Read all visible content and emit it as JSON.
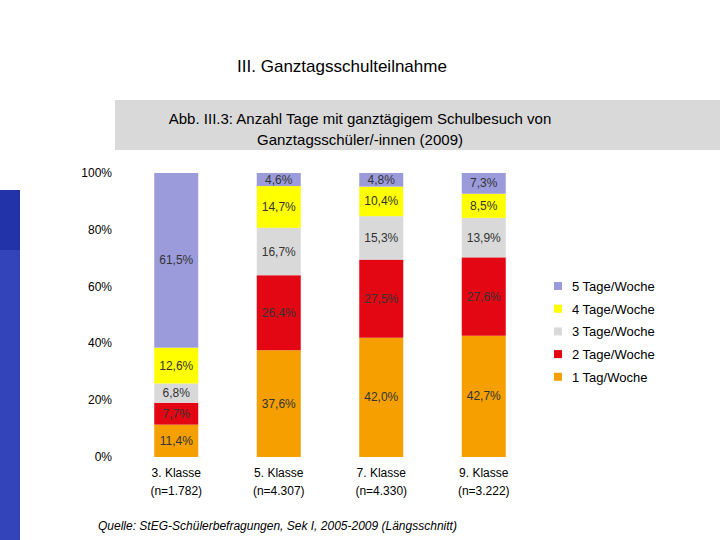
{
  "chart_data": {
    "type": "bar",
    "stacked": true,
    "data_labels": true,
    "heading": "III. Ganztagsschulteilnahme",
    "title": "Abb. III.3: Anzahl Tage mit ganztägigem Schulbesuch von\nGanztagsschüler/-innen (2009)",
    "source": "Quelle: StEG-Schülerbefragungen, Sek I, 2005-2009 (Längsschnitt)",
    "categories": [
      "3. Klasse\n(n=1.782)",
      "5. Klasse\n(n=4.307)",
      "7. Klasse\n(n=4.330)",
      "9. Klasse\n(n=3.222)"
    ],
    "series": [
      {
        "name": "1 Tag/Woche",
        "color": "#f5a000",
        "values": [
          11.4,
          37.6,
          42.0,
          42.7
        ],
        "value_labels": [
          "11,4%",
          "37,6%",
          "42,0%",
          "42,7%"
        ]
      },
      {
        "name": "2 Tage/Woche",
        "color": "#e30613",
        "values": [
          7.7,
          26.4,
          27.5,
          27.6
        ],
        "value_labels": [
          "7,7%",
          "26,4%",
          "27,5%",
          "27,6%"
        ]
      },
      {
        "name": "3 Tage/Woche",
        "color": "#d9d9d9",
        "values": [
          6.8,
          16.7,
          15.3,
          13.9
        ],
        "value_labels": [
          "6,8%",
          "16,7%",
          "15,3%",
          "13,9%"
        ]
      },
      {
        "name": "4 Tage/Woche",
        "color": "#ffff00",
        "values": [
          12.6,
          14.7,
          10.4,
          8.5
        ],
        "value_labels": [
          "12,6%",
          "14,7%",
          "10,4%",
          "8,5%"
        ]
      },
      {
        "name": "5 Tage/Woche",
        "color": "#9b9bdb",
        "values": [
          61.5,
          4.6,
          4.8,
          7.3
        ],
        "value_labels": [
          "61,5%",
          "4,6%",
          "4,8%",
          "7,3%"
        ]
      }
    ],
    "ylim": [
      0,
      100
    ],
    "yticks": [
      {
        "value": 0,
        "label": "0%"
      },
      {
        "value": 20,
        "label": "20%"
      },
      {
        "value": 40,
        "label": "40%"
      },
      {
        "value": 60,
        "label": "60%"
      },
      {
        "value": 80,
        "label": "80%"
      },
      {
        "value": 100,
        "label": "100%"
      }
    ],
    "grid": false,
    "legend": "right"
  }
}
